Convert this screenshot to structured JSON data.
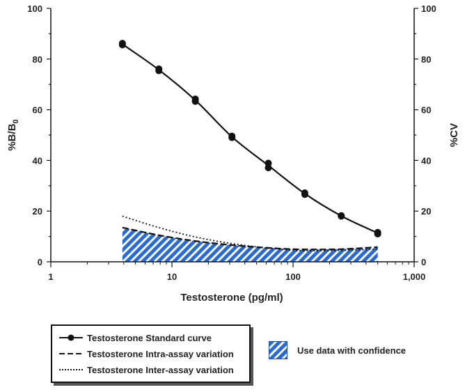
{
  "chart_data": {
    "type": "line",
    "x_scale": "log",
    "xlim": [
      1,
      1000
    ],
    "ylim_left": [
      0,
      100
    ],
    "ylim_right": [
      0,
      100
    ],
    "x_ticks": [
      {
        "value": 1,
        "label": "1"
      },
      {
        "value": 10,
        "label": "10"
      },
      {
        "value": 100,
        "label": "100"
      },
      {
        "value": 1000,
        "label": "1,000"
      }
    ],
    "y_ticks_left": [
      "0",
      "20",
      "40",
      "60",
      "80",
      "100"
    ],
    "y_ticks_right": [
      "0",
      "20",
      "40",
      "60",
      "80",
      "100"
    ],
    "xlabel": "Testosterone (pg/ml)",
    "ylabel_left_main": "%B/B",
    "ylabel_left_sub": "0",
    "ylabel_right": "%CV",
    "grid": false,
    "legend_position": "bottom",
    "series": [
      {
        "name": "Testosterone Standard curve",
        "style": "solid-markers",
        "axis": "left",
        "x": [
          3.9,
          3.9,
          7.8,
          7.8,
          15.6,
          15.6,
          31.3,
          31.3,
          62.5,
          62.5,
          125,
          125,
          250,
          250,
          500,
          500
        ],
        "y": [
          86.2,
          85.6,
          76.1,
          75.4,
          64.2,
          63.3,
          49.6,
          49.0,
          38.9,
          37.1,
          27.2,
          26.6,
          18.2,
          18.0,
          11.6,
          11.0
        ]
      },
      {
        "name": "Testosterone Intra-assay variation",
        "style": "dashed",
        "axis": "right",
        "x": [
          3.9,
          7.8,
          15.6,
          31.3,
          62.5,
          125,
          250,
          500
        ],
        "y": [
          13.5,
          10.5,
          8.2,
          6.6,
          5.5,
          4.9,
          5.0,
          5.8
        ]
      },
      {
        "name": "Testosterone Inter-assay variation",
        "style": "dotted",
        "axis": "right",
        "x": [
          3.9,
          7.8,
          15.6,
          31.3,
          62.5,
          125,
          250,
          500
        ],
        "y": [
          18.0,
          13.5,
          9.8,
          7.2,
          5.4,
          4.4,
          4.5,
          5.0
        ]
      }
    ],
    "confidence_region": {
      "label": "Use data with confidence",
      "x_range": [
        3.9,
        500
      ],
      "follows_series": "Testosterone Intra-assay variation",
      "color": "#2a6bd1"
    }
  },
  "legend": {
    "items": [
      "Testosterone Standard curve",
      "Testosterone Intra-assay variation",
      "Testosterone Inter-assay variation"
    ],
    "confidence_label": "Use data with confidence"
  },
  "colors": {
    "line": "#111111",
    "hatch": "#2a6bd1"
  }
}
